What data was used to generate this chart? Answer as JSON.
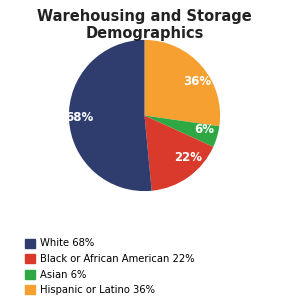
{
  "title": "Warehousing and Storage Demographics",
  "slices": [
    36,
    6,
    22,
    68
  ],
  "labels": [
    "36%",
    "6%",
    "22%",
    "68%"
  ],
  "colors": [
    "#f5a030",
    "#2fa843",
    "#d93a2b",
    "#2e3d6e"
  ],
  "legend_labels": [
    "White 68%",
    "Black or African American 22%",
    "Asian 6%",
    "Hispanic or Latino 36%"
  ],
  "legend_colors": [
    "#2e3d6e",
    "#d93a2b",
    "#2fa843",
    "#f5a030"
  ],
  "title_fontsize": 10.5,
  "label_fontsize": 8.5,
  "background_color": "#ffffff"
}
